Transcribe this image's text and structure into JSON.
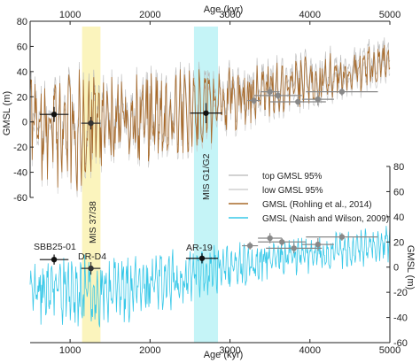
{
  "chart_data": {
    "type": "line",
    "top_axis_label": "Age (kyr)",
    "bottom_axis_label": "Age (kyr)",
    "left_axis_label": "GMSL (m)",
    "right_axis_label": "GMSL (m)",
    "xlim": [
      500,
      5000
    ],
    "x_ticks": [
      1000,
      2000,
      3000,
      4000,
      5000
    ],
    "top_panel": {
      "ylim": [
        -60,
        80
      ],
      "y_ticks": [
        -60,
        -40,
        -20,
        0,
        20,
        40,
        60,
        80
      ],
      "series": [
        {
          "name": "top GMSL 95%",
          "color": "#b8b8b8"
        },
        {
          "name": "low GMSL 95%",
          "color": "#c8c8c8"
        },
        {
          "name": "GMSL (Rohling et al., 2014)",
          "color": "#a86a2a"
        }
      ],
      "envelope": [
        {
          "x": 500,
          "y_mid": -5,
          "amp": 45
        },
        {
          "x": 1000,
          "y_mid": -6,
          "amp": 52
        },
        {
          "x": 1500,
          "y_mid": 0,
          "amp": 42
        },
        {
          "x": 2000,
          "y_mid": 4,
          "amp": 40
        },
        {
          "x": 2500,
          "y_mid": 8,
          "amp": 36
        },
        {
          "x": 3000,
          "y_mid": 18,
          "amp": 30
        },
        {
          "x": 3500,
          "y_mid": 26,
          "amp": 24
        },
        {
          "x": 4000,
          "y_mid": 32,
          "amp": 22
        },
        {
          "x": 4500,
          "y_mid": 38,
          "amp": 20
        },
        {
          "x": 5000,
          "y_mid": 48,
          "amp": 18
        }
      ],
      "points": [
        {
          "x": 800,
          "y": 6,
          "xerr": 180,
          "yerr": 6,
          "color": "#111111"
        },
        {
          "x": 1260,
          "y": -1,
          "xerr": 120,
          "yerr": 5,
          "color": "#333333"
        },
        {
          "x": 2700,
          "y": 7,
          "xerr": 200,
          "yerr": 8,
          "color": "#111111"
        },
        {
          "x": 3300,
          "y": 17,
          "xerr": 80,
          "yerr": 3,
          "color": "#888888"
        },
        {
          "x": 3500,
          "y": 24,
          "xerr": 120,
          "yerr": 4,
          "color": "#888888"
        },
        {
          "x": 3600,
          "y": 21,
          "xerr": 300,
          "yerr": 3,
          "color": "#888888"
        },
        {
          "x": 3850,
          "y": 16,
          "xerr": 350,
          "yerr": 4,
          "color": "#888888"
        },
        {
          "x": 4100,
          "y": 18,
          "xerr": 200,
          "yerr": 5,
          "color": "#888888"
        },
        {
          "x": 4400,
          "y": 24,
          "xerr": 450,
          "yerr": 3,
          "color": "#888888"
        }
      ]
    },
    "bottom_panel": {
      "ylim": [
        -60,
        80
      ],
      "y_ticks": [
        -60,
        -40,
        -20,
        0,
        20,
        40,
        60,
        80
      ],
      "series": [
        {
          "name": "GMSL (Naish and Wilson, 2009)",
          "color": "#38c8e8"
        }
      ],
      "envelope": [
        {
          "x": 500,
          "y_mid": -18,
          "amp": 30
        },
        {
          "x": 1000,
          "y_mid": -20,
          "amp": 34
        },
        {
          "x": 1500,
          "y_mid": -18,
          "amp": 30
        },
        {
          "x": 2000,
          "y_mid": -14,
          "amp": 28
        },
        {
          "x": 2500,
          "y_mid": -6,
          "amp": 24
        },
        {
          "x": 3000,
          "y_mid": 2,
          "amp": 20
        },
        {
          "x": 3500,
          "y_mid": 6,
          "amp": 16
        },
        {
          "x": 4000,
          "y_mid": 10,
          "amp": 16
        },
        {
          "x": 4500,
          "y_mid": 14,
          "amp": 16
        },
        {
          "x": 5000,
          "y_mid": 18,
          "amp": 16
        }
      ],
      "points": [
        {
          "x": 800,
          "y": 6,
          "xerr": 180,
          "yerr": 4,
          "color": "#111111"
        },
        {
          "x": 1260,
          "y": -1,
          "xerr": 120,
          "yerr": 5,
          "color": "#333333"
        },
        {
          "x": 2650,
          "y": 7,
          "xerr": 200,
          "yerr": 4,
          "color": "#111111"
        },
        {
          "x": 3250,
          "y": 17,
          "xerr": 100,
          "yerr": 3,
          "color": "#888888"
        },
        {
          "x": 3500,
          "y": 23,
          "xerr": 150,
          "yerr": 4,
          "color": "#888888"
        },
        {
          "x": 3650,
          "y": 20,
          "xerr": 300,
          "yerr": 3,
          "color": "#888888"
        },
        {
          "x": 3800,
          "y": 15,
          "xerr": 350,
          "yerr": 4,
          "color": "#888888"
        },
        {
          "x": 4100,
          "y": 18,
          "xerr": 200,
          "yerr": 5,
          "color": "#888888"
        },
        {
          "x": 4400,
          "y": 24,
          "xerr": 450,
          "yerr": 3,
          "color": "#888888"
        }
      ]
    },
    "bands": [
      {
        "label": "MIS 37/38",
        "x0": 1150,
        "x1": 1380,
        "color": "#fbf3b6"
      },
      {
        "label": "MIS G1/G2",
        "x0": 2550,
        "x1": 2850,
        "color": "#bff3f6"
      }
    ],
    "site_labels": [
      {
        "label": "SBB25-01",
        "x": 720
      },
      {
        "label": "DR-D4",
        "x": 1190
      },
      {
        "label": "AR-19",
        "x": 2600
      }
    ],
    "legend_position": "center-right"
  }
}
